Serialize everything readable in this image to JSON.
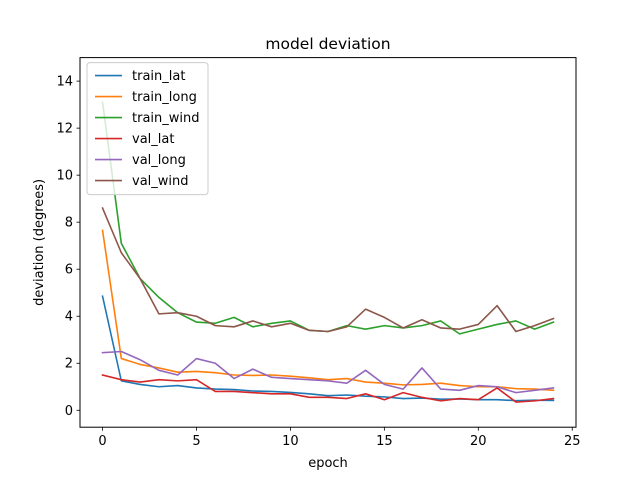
{
  "chart_data": {
    "type": "line",
    "title": "model deviation",
    "xlabel": "epoch",
    "ylabel": "deviation (degrees)",
    "xlim": [
      -1.2,
      25.2
    ],
    "ylim": [
      -0.72,
      15.0
    ],
    "xticks": [
      0,
      5,
      10,
      15,
      20,
      25
    ],
    "yticks": [
      0,
      2,
      4,
      6,
      8,
      10,
      12,
      14
    ],
    "grid": false,
    "legend_position": "top-left",
    "x": [
      0,
      1,
      2,
      3,
      4,
      5,
      6,
      7,
      8,
      9,
      10,
      11,
      12,
      13,
      14,
      15,
      16,
      17,
      18,
      19,
      20,
      21,
      22,
      23,
      24
    ],
    "series": [
      {
        "name": "train_lat",
        "color": "#1f77b4",
        "values": [
          4.85,
          1.25,
          1.1,
          1.0,
          1.05,
          0.95,
          0.9,
          0.88,
          0.82,
          0.8,
          0.76,
          0.7,
          0.62,
          0.65,
          0.6,
          0.57,
          0.5,
          0.52,
          0.47,
          0.48,
          0.45,
          0.45,
          0.41,
          0.43,
          0.42
        ]
      },
      {
        "name": "train_long",
        "color": "#ff7f0e",
        "values": [
          7.65,
          2.2,
          1.95,
          1.8,
          1.62,
          1.65,
          1.6,
          1.5,
          1.48,
          1.5,
          1.45,
          1.38,
          1.3,
          1.35,
          1.2,
          1.15,
          1.08,
          1.1,
          1.15,
          1.05,
          1.0,
          1.0,
          0.92,
          0.9,
          0.85
        ]
      },
      {
        "name": "train_wind",
        "color": "#2ca02c",
        "values": [
          13.1,
          7.1,
          5.6,
          4.8,
          4.15,
          3.75,
          3.7,
          3.95,
          3.55,
          3.7,
          3.8,
          3.4,
          3.35,
          3.6,
          3.45,
          3.6,
          3.5,
          3.6,
          3.8,
          3.25,
          3.45,
          3.65,
          3.8,
          3.45,
          3.75
        ]
      },
      {
        "name": "val_lat",
        "color": "#d62728",
        "values": [
          1.5,
          1.3,
          1.2,
          1.3,
          1.25,
          1.3,
          0.8,
          0.8,
          0.75,
          0.7,
          0.7,
          0.55,
          0.55,
          0.5,
          0.7,
          0.45,
          0.75,
          0.55,
          0.4,
          0.5,
          0.45,
          0.95,
          0.35,
          0.4,
          0.5
        ]
      },
      {
        "name": "val_long",
        "color": "#9467bd",
        "values": [
          2.45,
          2.5,
          2.15,
          1.7,
          1.5,
          2.2,
          2.0,
          1.35,
          1.75,
          1.4,
          1.35,
          1.3,
          1.25,
          1.15,
          1.7,
          1.1,
          0.9,
          1.8,
          0.9,
          0.85,
          1.05,
          1.0,
          0.75,
          0.85,
          0.95
        ]
      },
      {
        "name": "val_wind",
        "color": "#8c564b",
        "values": [
          8.6,
          6.7,
          5.6,
          4.1,
          4.15,
          4.0,
          3.6,
          3.55,
          3.8,
          3.55,
          3.7,
          3.4,
          3.35,
          3.55,
          4.3,
          3.95,
          3.5,
          3.85,
          3.5,
          3.45,
          3.65,
          4.45,
          3.35,
          3.6,
          3.9
        ]
      }
    ]
  }
}
